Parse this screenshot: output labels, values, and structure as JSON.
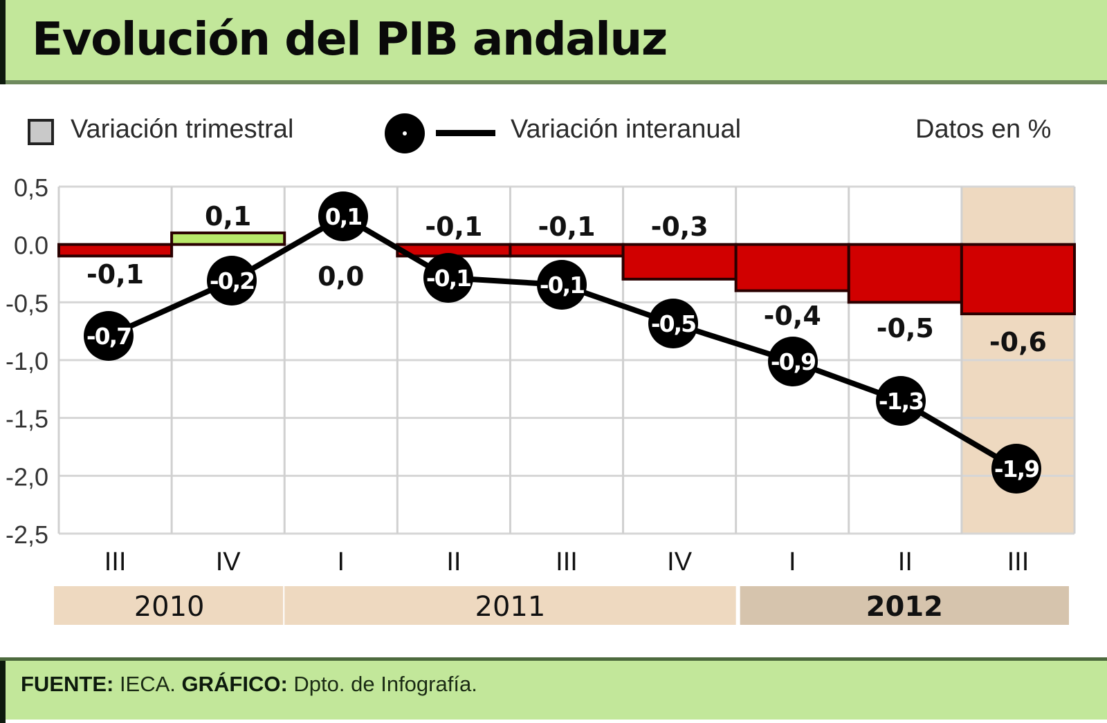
{
  "header": {
    "title": "Evolución del PIB andaluz"
  },
  "legend": {
    "quarterly_label": "Variación trimestral",
    "yearly_label": "Variación interanual",
    "units_note": "Datos en %"
  },
  "colors": {
    "header_bg": "#c2e79a",
    "negative_bar": "#d10000",
    "positive_bar": "#b9e86a",
    "highlight_bg": "#eed9c0",
    "year_band": "#eed9c0",
    "year_band_current": "#d6c4ad",
    "line": "#000000"
  },
  "chart_data": {
    "type": "bar",
    "title": "Evolución del PIB andaluz",
    "subtitle": "Datos en %",
    "xlabel": "",
    "ylabel": "",
    "ylim": [
      -2.5,
      0.5
    ],
    "yticks": [
      0.5,
      0.0,
      -0.5,
      -1.0,
      -1.5,
      -2.0,
      -2.5
    ],
    "ytick_labels": [
      "0,5",
      "0.0",
      "-0,5",
      "-1,0",
      "-1,5",
      "-2,0",
      "-2,5"
    ],
    "grid": true,
    "legend_position": "top",
    "categories": [
      "III",
      "IV",
      "I",
      "II",
      "III",
      "IV",
      "I",
      "II",
      "III"
    ],
    "year_groups": [
      {
        "label": "2010",
        "start": 0,
        "end": 1
      },
      {
        "label": "2011",
        "start": 2,
        "end": 5
      },
      {
        "label": "2012",
        "start": 6,
        "end": 8
      }
    ],
    "series": [
      {
        "name": "Variación trimestral",
        "type": "bar",
        "values": [
          -0.1,
          0.1,
          0.0,
          -0.1,
          -0.1,
          -0.3,
          -0.4,
          -0.5,
          -0.6
        ],
        "labels": [
          "-0,1",
          "0,1",
          "0,0",
          "-0,1",
          "-0,1",
          "-0,3",
          "-0,4",
          "-0,5",
          "-0,6"
        ]
      },
      {
        "name": "Variación interanual",
        "type": "line",
        "values": [
          -0.7,
          -0.2,
          0.1,
          -0.1,
          -0.1,
          -0.5,
          -0.9,
          -1.3,
          -1.9
        ],
        "labels": [
          "-0,7",
          "-0,2",
          "0,1",
          "-0,1",
          "-0,1",
          "-0,5",
          "-0,9",
          "-1,3",
          "-1,9"
        ]
      }
    ],
    "highlighted_category_index": 8
  },
  "footer": {
    "source_label": "FUENTE:",
    "source_value": " IECA. ",
    "graphic_label": "GRÁFICO:",
    "graphic_value": " Dpto. de Infografía."
  }
}
